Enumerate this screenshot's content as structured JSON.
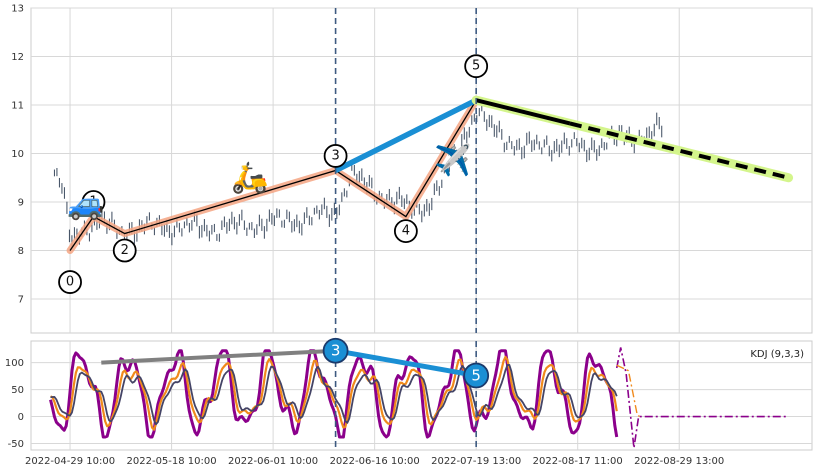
{
  "chart_data": [
    {
      "type": "candlestick",
      "panel": "price",
      "ylim": [
        6.3,
        13.0
      ],
      "y_ticks": [
        7,
        8,
        9,
        10,
        11,
        12,
        13
      ],
      "grid": true,
      "price_path": [
        [
          -2,
          9.6
        ],
        [
          -1,
          9.3
        ],
        [
          0,
          8.2
        ],
        [
          2,
          8.5
        ],
        [
          4,
          8.6
        ],
        [
          6,
          8.4
        ],
        [
          12,
          8.5
        ],
        [
          18,
          8.45
        ],
        [
          24,
          8.55
        ],
        [
          30,
          8.65
        ],
        [
          34,
          8.8
        ],
        [
          36,
          9.6
        ],
        [
          38,
          9.3
        ],
        [
          42,
          9.0
        ],
        [
          44,
          8.8
        ],
        [
          46,
          9.0
        ],
        [
          48,
          9.5
        ],
        [
          50,
          10.2
        ],
        [
          52,
          10.9
        ],
        [
          54,
          10.5
        ],
        [
          58,
          10.1
        ],
        [
          62,
          10.2
        ],
        [
          66,
          10.1
        ],
        [
          70,
          10.3
        ],
        [
          74,
          10.4
        ],
        [
          76,
          10.5
        ]
      ],
      "elliott_waves": {
        "points": [
          [
            0,
            8.0
          ],
          [
            3,
            8.7
          ],
          [
            7,
            8.35
          ],
          [
            34,
            9.65
          ],
          [
            43,
            8.7
          ],
          [
            52,
            11.1
          ]
        ],
        "labels": [
          "0",
          "1",
          "2",
          "3",
          "4",
          "5"
        ],
        "label_points": [
          [
            0,
            7.35
          ],
          [
            3,
            9.0
          ],
          [
            7,
            8.0
          ],
          [
            34,
            9.95
          ],
          [
            43,
            8.4
          ],
          [
            52,
            11.8
          ]
        ],
        "line_color": "#000000",
        "highlight_color": "#f4a582"
      },
      "trend_line": {
        "points": [
          [
            34,
            9.65
          ],
          [
            52,
            11.1
          ]
        ],
        "color": "#1a8fd4"
      },
      "projection": {
        "points": [
          [
            52,
            11.1
          ],
          [
            92,
            9.5
          ]
        ],
        "solid_until": 64,
        "line_color": "#000000",
        "highlight_color": "#d4f58c"
      },
      "vlines_x": [
        34,
        52
      ],
      "icons": [
        {
          "name": "car",
          "glyph": "🚙",
          "x": 2,
          "y": 8.95
        },
        {
          "name": "scooter",
          "glyph": "🛵",
          "x": 23,
          "y": 9.5
        },
        {
          "name": "airplane",
          "glyph": "✈️",
          "x": 49,
          "y": 9.85
        }
      ]
    },
    {
      "type": "line",
      "panel": "indicator",
      "ylim": [
        -62,
        140
      ],
      "y_ticks": [
        -50,
        0,
        50,
        100
      ],
      "legend": "KDJ (9,3,3)",
      "legend_position": "top-right",
      "series": [
        {
          "name": "J",
          "color": "#8b008b"
        },
        {
          "name": "K",
          "color": "#f08a1c"
        },
        {
          "name": "D",
          "color": "#444466"
        }
      ],
      "grey_line": {
        "points": [
          [
            4,
            100
          ],
          [
            34,
            122
          ]
        ],
        "color": "#808080"
      },
      "trend_line": {
        "points": [
          [
            34,
            122
          ],
          [
            52,
            76
          ]
        ],
        "color": "#1a8fd4"
      },
      "markers": [
        {
          "label": "3",
          "x": 34,
          "y": 122
        },
        {
          "label": "5",
          "x": 52,
          "y": 76
        }
      ],
      "forecast_tail": {
        "x_start": 70,
        "x_end": 92,
        "value": 0
      }
    }
  ],
  "x_axis": {
    "range": [
      -5,
      95
    ],
    "tick_positions": [
      0,
      13,
      26,
      39,
      52,
      65,
      78
    ],
    "tick_labels": [
      "2022-04-29 10:00",
      "2022-05-18 10:00",
      "2022-06-01 10:00",
      "2022-06-16 10:00",
      "2022-07-19 13:00",
      "2022-08-17 11:00",
      "2022-08-29 13:00"
    ]
  },
  "colors": {
    "candle": "#3b4a5e",
    "grid": "#d8d8d8",
    "vline": "#3d5a80"
  }
}
